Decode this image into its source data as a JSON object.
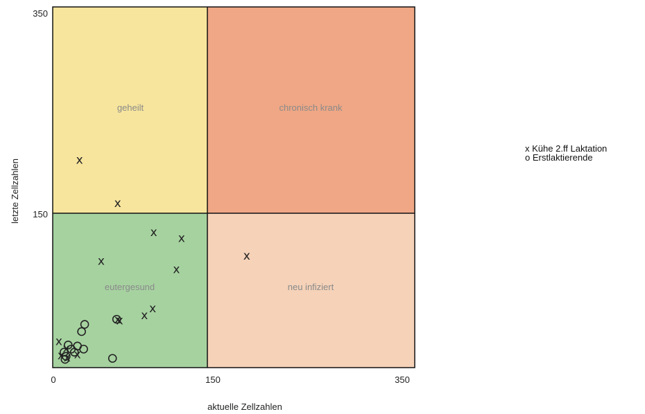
{
  "chart_data": {
    "type": "scatter",
    "xlabel": "aktuelle Zellzahlen",
    "ylabel": "letzte Zellzahlen",
    "xlim": [
      0,
      350
    ],
    "ylim": [
      0,
      350
    ],
    "x_ticks": [
      "0",
      "150",
      "350"
    ],
    "y_ticks": [
      "150",
      "350"
    ],
    "threshold": 150,
    "zones": [
      {
        "name": "geheilt",
        "color": "#f7e59d"
      },
      {
        "name": "chronisch krank",
        "color": "#efa785"
      },
      {
        "name": "eutergesund",
        "color": "#a6d2a0"
      },
      {
        "name": "neu infiziert",
        "color": "#f5d2b8"
      }
    ],
    "legend": [
      "x Kühe 2.ff Laktation",
      "o Erstlaktierende"
    ],
    "series": [
      {
        "marker": "x",
        "points": [
          {
            "x": 26,
            "y": 202
          },
          {
            "x": 63,
            "y": 160
          },
          {
            "x": 98,
            "y": 132
          },
          {
            "x": 125,
            "y": 126
          },
          {
            "x": 47,
            "y": 104
          },
          {
            "x": 120,
            "y": 96
          },
          {
            "x": 188,
            "y": 109
          },
          {
            "x": 97,
            "y": 58
          },
          {
            "x": 89,
            "y": 51
          },
          {
            "x": 65,
            "y": 46
          },
          {
            "x": 63,
            "y": 47
          },
          {
            "x": 6,
            "y": 26
          },
          {
            "x": 13,
            "y": 19
          },
          {
            "x": 24,
            "y": 13
          },
          {
            "x": 8,
            "y": 12
          },
          {
            "x": 14,
            "y": 10
          }
        ]
      },
      {
        "marker": "o",
        "points": [
          {
            "x": 31,
            "y": 42
          },
          {
            "x": 28,
            "y": 35
          },
          {
            "x": 62,
            "y": 47
          },
          {
            "x": 15,
            "y": 22
          },
          {
            "x": 24,
            "y": 21
          },
          {
            "x": 30,
            "y": 18
          },
          {
            "x": 18,
            "y": 18
          },
          {
            "x": 11,
            "y": 15
          },
          {
            "x": 21,
            "y": 15
          },
          {
            "x": 13,
            "y": 11
          },
          {
            "x": 12,
            "y": 8
          },
          {
            "x": 58,
            "y": 9
          }
        ]
      }
    ]
  }
}
